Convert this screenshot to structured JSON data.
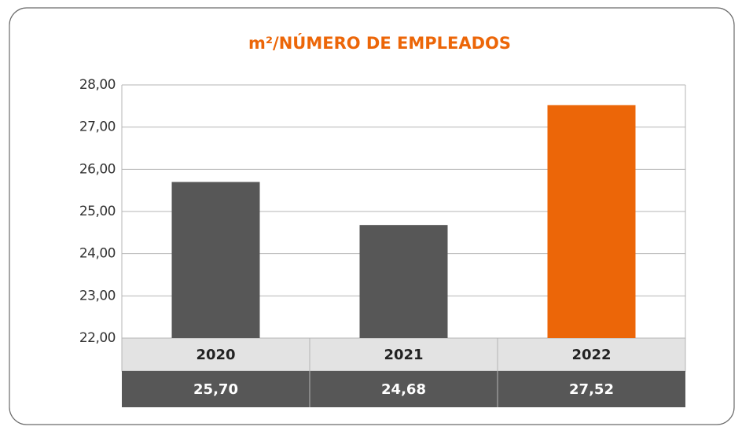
{
  "chart_data": {
    "type": "bar",
    "title": "m²/NÚMERO DE EMPLEADOS",
    "categories": [
      "2020",
      "2021",
      "2022"
    ],
    "values": [
      25.7,
      24.68,
      27.52
    ],
    "value_labels": [
      "25,70",
      "24,68",
      "27,52"
    ],
    "colors": [
      "#575757",
      "#575757",
      "#ec6608"
    ],
    "ylim": [
      22,
      28
    ],
    "yticks": [
      {
        "value": 22,
        "label": "22,00"
      },
      {
        "value": 23,
        "label": "23,00"
      },
      {
        "value": 24,
        "label": "24,00"
      },
      {
        "value": 25,
        "label": "25,00"
      },
      {
        "value": 26,
        "label": "26,00"
      },
      {
        "value": 27,
        "label": "27,00"
      },
      {
        "value": 28,
        "label": "28,00"
      }
    ],
    "grid": true
  }
}
